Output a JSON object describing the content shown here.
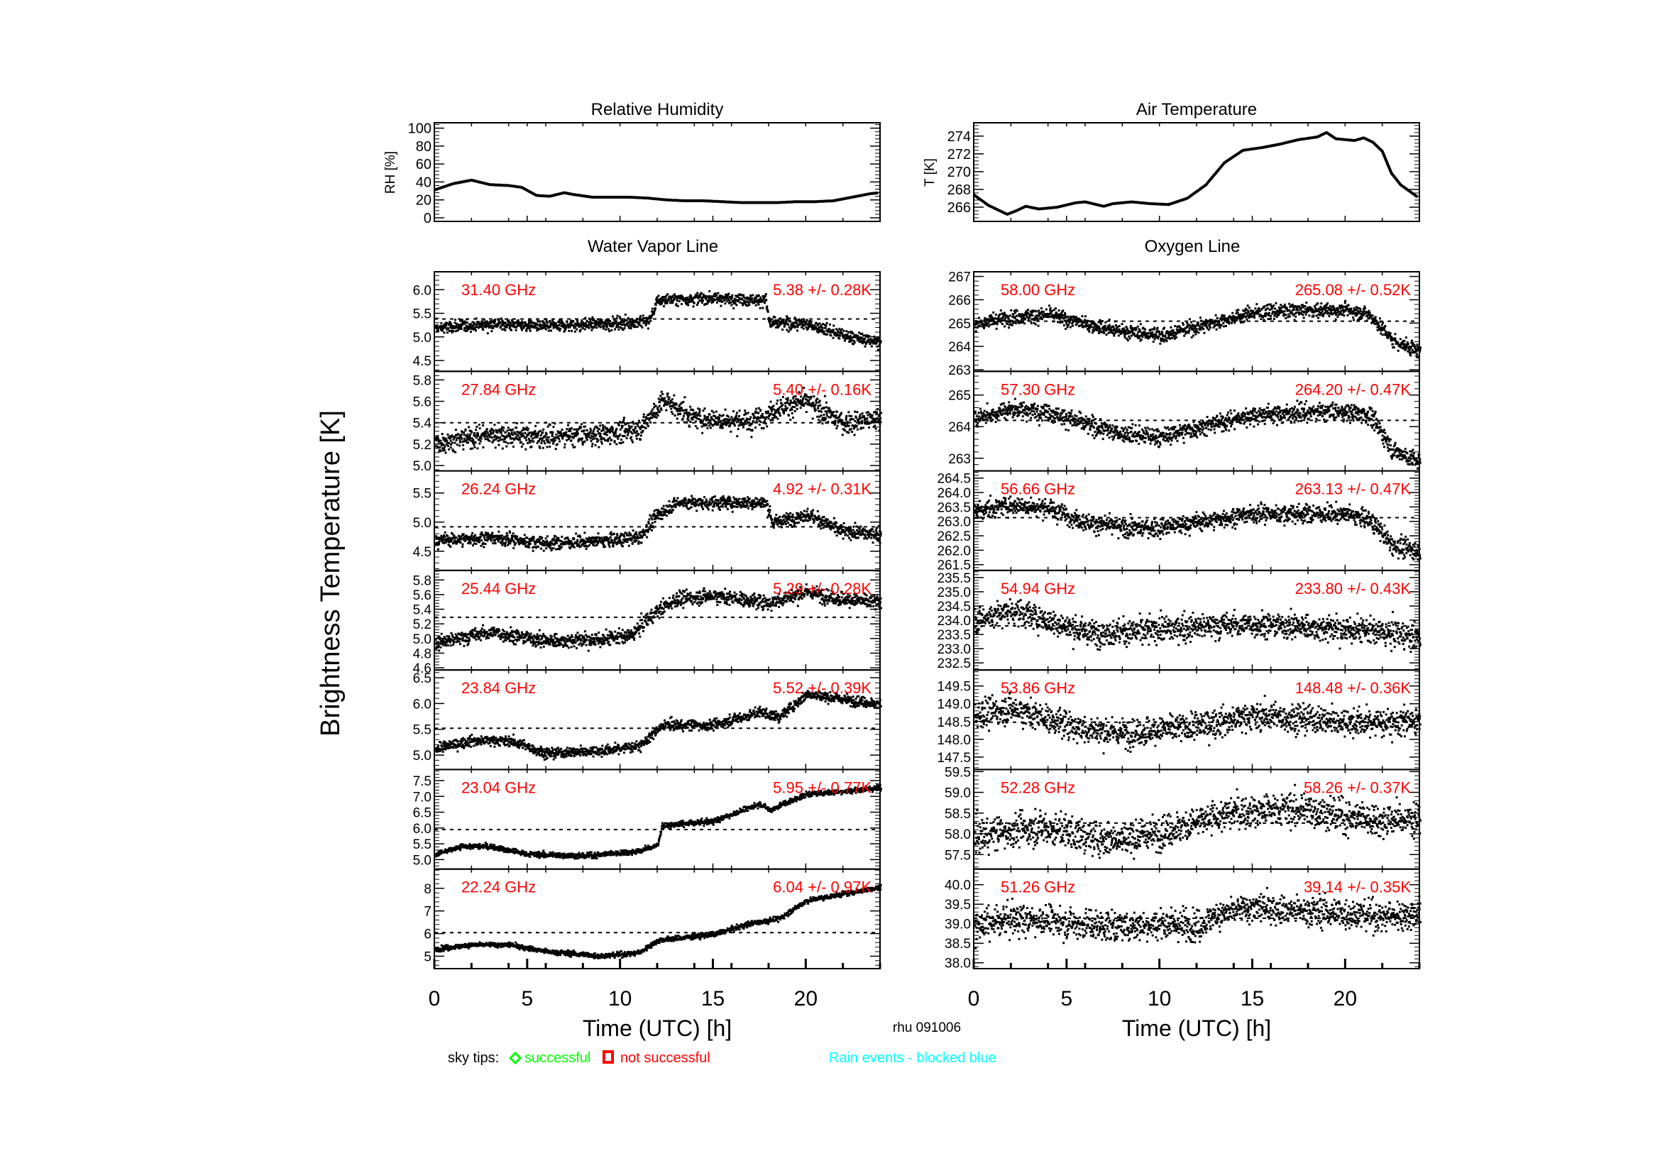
{
  "figure": {
    "ylabel": "Brightness Temperature [K]",
    "station_date": "rhu 091006",
    "legend": {
      "prefix": "sky tips:",
      "successful_label": "successful",
      "not_successful_label": "not successful",
      "rain_label": "Rain events - blocked blue"
    },
    "colors": {
      "axis": "#000000",
      "channel_label": "#ff0000",
      "successful": "#00ff00",
      "not_successful": "#ff0000",
      "rain": "#00ffff"
    }
  },
  "chart_data": [
    {
      "id": "rh",
      "type": "line",
      "title": "Relative Humidity",
      "xlabel": "",
      "ylabel": "RH [%]",
      "xlim": [
        0,
        24
      ],
      "ylim": [
        -4,
        106
      ],
      "yticks": [
        0,
        20,
        40,
        60,
        80,
        100
      ],
      "x": [
        0,
        1,
        2,
        3,
        4,
        4.7,
        5.5,
        6.2,
        7,
        7.5,
        8.5,
        9.5,
        10.5,
        11.5,
        12.5,
        13.5,
        14.5,
        15.5,
        16.5,
        17.5,
        18.5,
        19.5,
        20.5,
        21.5,
        22.5,
        23.5,
        24
      ],
      "values": [
        31,
        38,
        42,
        37,
        36,
        34,
        25,
        24,
        28,
        26,
        23,
        23,
        23,
        22,
        20,
        19,
        19,
        18,
        17,
        17,
        17,
        18,
        18,
        19,
        23,
        27,
        28
      ]
    },
    {
      "id": "temp",
      "type": "line",
      "title": "Air Temperature",
      "xlabel": "",
      "ylabel": "T [K]",
      "xlim": [
        0,
        24
      ],
      "ylim": [
        264.4,
        275.5
      ],
      "yticks": [
        266,
        268,
        270,
        272,
        274
      ],
      "x": [
        0,
        0.8,
        1.8,
        2.3,
        2.8,
        3.5,
        4.5,
        5.5,
        6,
        7,
        7.5,
        8.5,
        9.5,
        10.5,
        11.5,
        12.5,
        13.5,
        14.5,
        15.5,
        16.5,
        17.5,
        18.5,
        19,
        19.5,
        20.5,
        21,
        21.5,
        22,
        22.5,
        23,
        24
      ],
      "values": [
        267.4,
        266.2,
        265.2,
        265.6,
        266.1,
        265.8,
        266.0,
        266.5,
        266.6,
        266.1,
        266.4,
        266.6,
        266.4,
        266.3,
        267.0,
        268.5,
        271.0,
        272.4,
        272.7,
        273.1,
        273.6,
        273.9,
        274.4,
        273.7,
        273.5,
        273.8,
        273.3,
        272.3,
        269.8,
        268.5,
        267.0
      ]
    },
    {
      "id": "water_vapor",
      "type": "scatter",
      "title": "Water Vapor Line",
      "xlabel": "Time (UTC) [h]",
      "xlim": [
        0,
        24
      ],
      "xticks": [
        0,
        5,
        10,
        15,
        20
      ],
      "panels": [
        {
          "freq": "31.40 GHz",
          "stat": "5.38 +/-  0.28K",
          "mean": 5.38,
          "std": 0.28,
          "ylim": [
            4.27,
            6.38
          ],
          "yticks": [
            "4.5",
            "5.0",
            "5.5",
            "6.0"
          ],
          "noise": 0.09,
          "trend_x": [
            0,
            3,
            6,
            9,
            11.5,
            12,
            15,
            17.8,
            18,
            20,
            22,
            24
          ],
          "trend_y": [
            5.2,
            5.3,
            5.25,
            5.3,
            5.35,
            5.8,
            5.85,
            5.8,
            5.3,
            5.3,
            5.05,
            4.9
          ]
        },
        {
          "freq": "27.84 GHz",
          "stat": "5.40 +/-  0.16K",
          "mean": 5.4,
          "std": 0.16,
          "ylim": [
            4.95,
            5.88
          ],
          "yticks": [
            "5.0",
            "5.2",
            "5.4",
            "5.6",
            "5.8"
          ],
          "noise": 0.07,
          "trend_x": [
            0,
            3,
            6,
            9,
            11,
            12.3,
            14,
            17,
            18.5,
            20,
            22,
            24
          ],
          "trend_y": [
            5.22,
            5.3,
            5.28,
            5.3,
            5.35,
            5.62,
            5.45,
            5.42,
            5.55,
            5.6,
            5.4,
            5.45
          ]
        },
        {
          "freq": "26.24 GHz",
          "stat": "4.92 +/-  0.31K",
          "mean": 4.92,
          "std": 0.31,
          "ylim": [
            4.17,
            5.88
          ],
          "yticks": [
            "4.5",
            "5.0",
            "5.5"
          ],
          "noise": 0.08,
          "trend_x": [
            0,
            3,
            6,
            9,
            11,
            12,
            13,
            15,
            17.8,
            18.2,
            20,
            22,
            24
          ],
          "trend_y": [
            4.7,
            4.75,
            4.65,
            4.7,
            4.75,
            5.15,
            5.35,
            5.35,
            5.35,
            5.0,
            5.15,
            4.85,
            4.8
          ]
        },
        {
          "freq": "25.44 GHz",
          "stat": "5.29 +/-  0.28K",
          "mean": 5.29,
          "std": 0.28,
          "ylim": [
            4.57,
            5.93
          ],
          "yticks": [
            "4.6",
            "4.8",
            "5.0",
            "5.2",
            "5.4",
            "5.6",
            "5.8"
          ],
          "noise": 0.07,
          "trend_x": [
            0,
            3,
            6,
            9,
            10.5,
            12,
            13,
            15,
            18,
            20,
            22,
            24
          ],
          "trend_y": [
            4.95,
            5.1,
            4.98,
            5.0,
            5.05,
            5.4,
            5.55,
            5.6,
            5.5,
            5.65,
            5.55,
            5.5
          ]
        },
        {
          "freq": "23.84 GHz",
          "stat": "5.52 +/-  0.39K",
          "mean": 5.52,
          "std": 0.39,
          "ylim": [
            4.72,
            6.65
          ],
          "yticks": [
            "5.0",
            "5.5",
            "6.0",
            "6.5"
          ],
          "noise": 0.07,
          "trend_x": [
            0,
            2,
            4,
            6,
            9,
            11,
            12.3,
            15,
            17.5,
            18.5,
            20,
            22,
            24
          ],
          "trend_y": [
            5.15,
            5.3,
            5.3,
            5.05,
            5.1,
            5.2,
            5.6,
            5.6,
            5.85,
            5.75,
            6.2,
            6.1,
            6.0
          ]
        },
        {
          "freq": "23.04 GHz",
          "stat": "5.95 +/-  0.77K",
          "mean": 5.95,
          "std": 0.77,
          "ylim": [
            4.7,
            7.85
          ],
          "yticks": [
            "5.0",
            "5.5",
            "6.0",
            "6.5",
            "7.0",
            "7.5"
          ],
          "noise": 0.06,
          "trend_x": [
            0,
            1.5,
            3,
            5,
            8,
            11,
            12,
            12.2,
            15,
            17.5,
            18,
            20,
            22,
            24
          ],
          "trend_y": [
            5.2,
            5.45,
            5.45,
            5.2,
            5.15,
            5.3,
            5.5,
            6.1,
            6.25,
            6.8,
            6.6,
            7.1,
            7.2,
            7.3
          ]
        },
        {
          "freq": "22.24 GHz",
          "stat": "6.04 +/-  0.97K",
          "mean": 6.04,
          "std": 0.97,
          "ylim": [
            4.45,
            8.85
          ],
          "yticks": [
            "5",
            "6",
            "7",
            "8"
          ],
          "noise": 0.08,
          "trend_x": [
            0,
            2,
            4,
            6,
            9,
            11,
            12,
            15,
            17,
            18.5,
            20,
            22,
            24
          ],
          "trend_y": [
            5.35,
            5.55,
            5.55,
            5.25,
            5.05,
            5.2,
            5.75,
            6.0,
            6.5,
            6.7,
            7.5,
            7.8,
            8.1
          ]
        }
      ]
    },
    {
      "id": "oxygen",
      "type": "scatter",
      "title": "Oxygen Line",
      "xlabel": "Time (UTC) [h]",
      "xlim": [
        0,
        24
      ],
      "xticks": [
        0,
        5,
        10,
        15,
        20
      ],
      "panels": [
        {
          "freq": "58.00 GHz",
          "stat": "265.08 +/-  0.52K",
          "mean": 265.08,
          "std": 0.52,
          "ylim": [
            262.93,
            267.2
          ],
          "yticks": [
            "263",
            "264",
            "265",
            "266",
            "267"
          ],
          "noise": 0.22,
          "trend_x": [
            0,
            2,
            4,
            6,
            8,
            10,
            12,
            15,
            18,
            20,
            21.3,
            22.5,
            24
          ],
          "trend_y": [
            265.0,
            265.3,
            265.4,
            265.0,
            264.7,
            264.5,
            264.9,
            265.5,
            265.6,
            265.6,
            265.4,
            264.3,
            263.8
          ]
        },
        {
          "freq": "57.30 GHz",
          "stat": "264.20 +/-  0.47K",
          "mean": 264.2,
          "std": 0.47,
          "ylim": [
            262.6,
            265.75
          ],
          "yticks": [
            "263",
            "264",
            "265"
          ],
          "noise": 0.2,
          "trend_x": [
            0,
            2,
            4,
            6,
            8,
            10,
            12,
            15,
            18,
            20,
            21.3,
            22.5,
            24
          ],
          "trend_y": [
            264.3,
            264.6,
            264.5,
            264.1,
            263.8,
            263.7,
            264.0,
            264.4,
            264.5,
            264.5,
            264.4,
            263.3,
            262.9
          ]
        },
        {
          "freq": "56.66 GHz",
          "stat": "263.13 +/-  0.47K",
          "mean": 263.13,
          "std": 0.47,
          "ylim": [
            261.3,
            264.75
          ],
          "yticks": [
            "261.5",
            "262.0",
            "262.5",
            "263.0",
            "263.5",
            "264.0",
            "264.5"
          ],
          "noise": 0.22,
          "trend_x": [
            0,
            2,
            4,
            6,
            8,
            10,
            12,
            15,
            18,
            20,
            21.3,
            22.5,
            24
          ],
          "trend_y": [
            263.4,
            263.6,
            263.5,
            263.0,
            262.8,
            262.8,
            263.0,
            263.3,
            263.3,
            263.3,
            263.1,
            262.2,
            262.0
          ]
        },
        {
          "freq": "54.94 GHz",
          "stat": "233.80 +/-  0.43K",
          "mean": 233.8,
          "std": 0.43,
          "ylim": [
            232.25,
            235.75
          ],
          "yticks": [
            "232.5",
            "233.0",
            "233.5",
            "234.0",
            "234.5",
            "235.0",
            "235.5"
          ],
          "noise": 0.32,
          "trend_x": [
            0,
            2,
            4,
            6,
            8,
            10,
            12,
            15,
            18,
            20,
            22,
            24
          ],
          "trend_y": [
            234.0,
            234.4,
            234.0,
            233.6,
            233.6,
            233.7,
            233.8,
            233.9,
            233.8,
            233.7,
            233.6,
            233.4
          ]
        },
        {
          "freq": "53.86 GHz",
          "stat": "148.48 +/-  0.36K",
          "mean": 148.48,
          "std": 0.36,
          "ylim": [
            147.15,
            149.95
          ],
          "yticks": [
            "147.5",
            "148.0",
            "148.5",
            "149.0",
            "149.5"
          ],
          "noise": 0.28,
          "trend_x": [
            0,
            2,
            4,
            6,
            8,
            10,
            12,
            15,
            18,
            20,
            22,
            24
          ],
          "trend_y": [
            148.7,
            148.9,
            148.6,
            148.3,
            148.2,
            148.3,
            148.4,
            148.7,
            148.6,
            148.5,
            148.5,
            148.5
          ]
        },
        {
          "freq": "52.28 GHz",
          "stat": "58.26 +/-  0.37K",
          "mean": 58.26,
          "std": 0.37,
          "ylim": [
            57.15,
            59.55
          ],
          "yticks": [
            "57.5",
            "58.0",
            "58.5",
            "59.0",
            "59.5"
          ],
          "noise": 0.28,
          "trend_x": [
            0,
            2,
            4,
            6,
            8,
            10,
            12,
            14,
            16,
            18,
            20,
            22,
            24
          ],
          "trend_y": [
            57.95,
            58.1,
            58.15,
            57.95,
            57.9,
            58.05,
            58.3,
            58.55,
            58.6,
            58.6,
            58.45,
            58.35,
            58.4
          ]
        },
        {
          "freq": "51.26 GHz",
          "stat": "39.14 +/-  0.35K",
          "mean": 39.14,
          "std": 0.35,
          "ylim": [
            37.85,
            40.4
          ],
          "yticks": [
            "38.0",
            "38.5",
            "39.0",
            "39.5",
            "40.0"
          ],
          "noise": 0.27,
          "trend_x": [
            0,
            2,
            4,
            6,
            8,
            10,
            12,
            13,
            15,
            18,
            20,
            22,
            24
          ],
          "trend_y": [
            38.95,
            39.15,
            39.1,
            39.0,
            38.95,
            39.05,
            38.95,
            39.25,
            39.45,
            39.35,
            39.3,
            39.2,
            39.3
          ]
        }
      ]
    }
  ]
}
